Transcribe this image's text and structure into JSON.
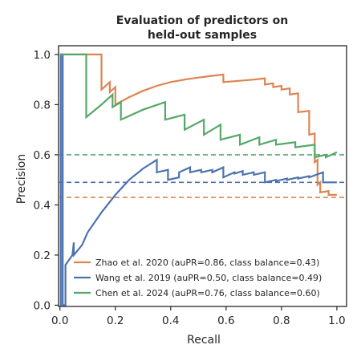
{
  "chart_data": {
    "type": "line",
    "title_line1": "Evaluation of predictors on",
    "title_line2": "held-out samples",
    "xlabel": "Recall",
    "ylabel": "Precision",
    "xlim": [
      -0.005,
      1.035
    ],
    "ylim": [
      -0.005,
      1.035
    ],
    "xticks": [
      0.0,
      0.2,
      0.4,
      0.6,
      0.8,
      1.0
    ],
    "yticks": [
      0.0,
      0.2,
      0.4,
      0.6,
      0.8,
      1.0
    ],
    "tick_labels": [
      "0.0",
      "0.2",
      "0.4",
      "0.6",
      "0.8",
      "1.0"
    ],
    "grid": false,
    "legend_position": "lower-right",
    "series": [
      {
        "name": "Zhao et al. 2020 (auPR=0.86, class balance=0.43)",
        "color": "#dd8452",
        "baseline": 0.43,
        "x": [
          0.0,
          0.15,
          0.15,
          0.18,
          0.18,
          0.2,
          0.2,
          0.25,
          0.3,
          0.35,
          0.4,
          0.45,
          0.5,
          0.55,
          0.59,
          0.59,
          0.65,
          0.7,
          0.74,
          0.74,
          0.77,
          0.77,
          0.8,
          0.8,
          0.83,
          0.83,
          0.86,
          0.86,
          0.9,
          0.9,
          0.92,
          0.92,
          0.93,
          0.93,
          0.94,
          0.94,
          0.97,
          0.97,
          1.0
        ],
        "y": [
          1.0,
          1.0,
          0.86,
          0.89,
          0.85,
          0.87,
          0.8,
          0.83,
          0.855,
          0.875,
          0.89,
          0.9,
          0.908,
          0.915,
          0.92,
          0.89,
          0.895,
          0.9,
          0.905,
          0.88,
          0.885,
          0.87,
          0.875,
          0.86,
          0.865,
          0.84,
          0.845,
          0.77,
          0.775,
          0.68,
          0.685,
          0.57,
          0.58,
          0.48,
          0.49,
          0.45,
          0.455,
          0.44,
          0.44
        ]
      },
      {
        "name": "Wang et al. 2019 (auPR=0.50, class balance=0.49)",
        "color": "#4c72b0",
        "baseline": 0.49,
        "x": [
          0.0,
          0.003,
          0.003,
          0.01,
          0.01,
          0.02,
          0.02,
          0.045,
          0.05,
          0.05,
          0.08,
          0.1,
          0.15,
          0.2,
          0.25,
          0.3,
          0.35,
          0.35,
          0.39,
          0.39,
          0.43,
          0.43,
          0.47,
          0.47,
          0.51,
          0.51,
          0.55,
          0.55,
          0.59,
          0.59,
          0.63,
          0.63,
          0.66,
          0.66,
          0.7,
          0.7,
          0.74,
          0.74,
          0.78,
          0.78,
          0.82,
          0.82,
          0.86,
          0.86,
          0.9,
          0.9,
          0.95,
          0.95,
          1.0
        ],
        "y": [
          0.0,
          0.0,
          1.0,
          1.0,
          0.0,
          0.0,
          0.16,
          0.2,
          0.25,
          0.2,
          0.24,
          0.29,
          0.37,
          0.44,
          0.5,
          0.545,
          0.58,
          0.53,
          0.54,
          0.5,
          0.51,
          0.53,
          0.55,
          0.53,
          0.54,
          0.53,
          0.54,
          0.53,
          0.55,
          0.51,
          0.53,
          0.525,
          0.535,
          0.52,
          0.53,
          0.52,
          0.53,
          0.49,
          0.5,
          0.495,
          0.505,
          0.5,
          0.51,
          0.505,
          0.515,
          0.51,
          0.53,
          0.49,
          0.49
        ]
      },
      {
        "name": "Chen et al. 2024 (auPR=0.76, class balance=0.60)",
        "color": "#55a868",
        "baseline": 0.6,
        "x": [
          0.0,
          0.095,
          0.095,
          0.15,
          0.19,
          0.19,
          0.22,
          0.22,
          0.3,
          0.38,
          0.38,
          0.45,
          0.45,
          0.52,
          0.52,
          0.58,
          0.58,
          0.65,
          0.65,
          0.72,
          0.72,
          0.78,
          0.78,
          0.85,
          0.85,
          0.92,
          0.92,
          0.96,
          0.96,
          1.0
        ],
        "y": [
          1.0,
          1.0,
          0.75,
          0.8,
          0.84,
          0.79,
          0.81,
          0.74,
          0.78,
          0.81,
          0.74,
          0.76,
          0.7,
          0.74,
          0.68,
          0.72,
          0.66,
          0.68,
          0.64,
          0.67,
          0.64,
          0.66,
          0.64,
          0.65,
          0.63,
          0.64,
          0.59,
          0.6,
          0.59,
          0.61
        ]
      }
    ]
  }
}
